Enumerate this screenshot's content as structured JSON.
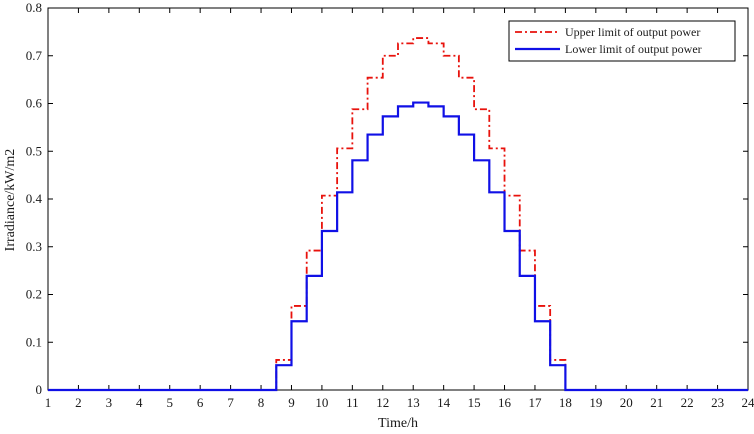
{
  "chart_data": {
    "type": "line",
    "xlabel": "Time/h",
    "ylabel": "Irradiance/kW/m2",
    "xlim": [
      1,
      24
    ],
    "ylim": [
      0,
      0.8
    ],
    "xticks": [
      "1",
      "2",
      "3",
      "4",
      "5",
      "6",
      "7",
      "8",
      "9",
      "10",
      "11",
      "12",
      "13",
      "14",
      "15",
      "16",
      "17",
      "18",
      "19",
      "20",
      "21",
      "22",
      "23",
      "24"
    ],
    "yticks": [
      "0",
      "0.1",
      "0.2",
      "0.3",
      "0.4",
      "0.5",
      "0.6",
      "0.7",
      "0.8"
    ],
    "grid": false,
    "legend_position": "top-right",
    "step_boundaries": [
      1,
      8.5,
      9,
      9.5,
      10,
      10.5,
      11,
      11.5,
      12,
      12.5,
      13,
      13.5,
      14,
      14.5,
      15,
      15.5,
      16,
      16.5,
      17,
      17.5,
      18,
      24
    ],
    "series": [
      {
        "name": "Upper limit of output power",
        "color": "#e8120c",
        "style": "dash-dot",
        "values": [
          0,
          0.063,
          0.176,
          0.292,
          0.407,
          0.506,
          0.588,
          0.654,
          0.7,
          0.726,
          0.737,
          0.726,
          0.7,
          0.654,
          0.588,
          0.506,
          0.407,
          0.292,
          0.176,
          0.063,
          0
        ]
      },
      {
        "name": "Lower limit of output power",
        "color": "#1010e6",
        "style": "solid",
        "values": [
          0,
          0.052,
          0.144,
          0.239,
          0.333,
          0.414,
          0.481,
          0.535,
          0.573,
          0.594,
          0.602,
          0.594,
          0.573,
          0.535,
          0.481,
          0.414,
          0.333,
          0.239,
          0.144,
          0.052,
          0
        ]
      }
    ]
  }
}
